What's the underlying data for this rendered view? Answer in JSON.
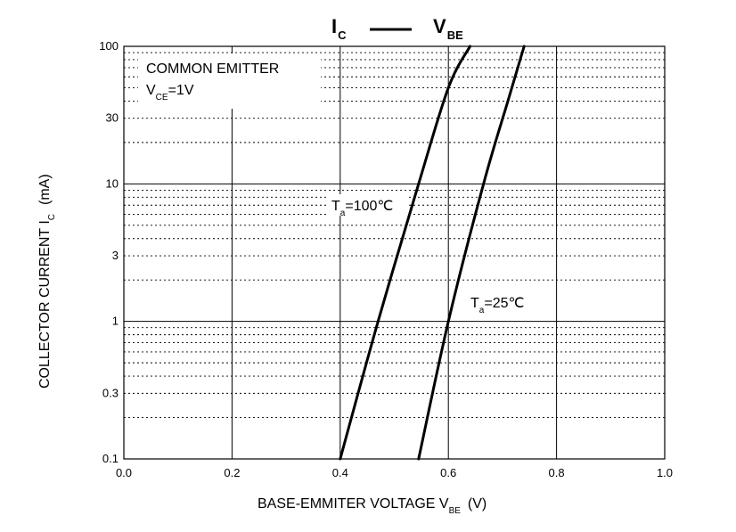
{
  "chart_data": {
    "type": "line",
    "title": {
      "main": "I",
      "main_sub": "C",
      "dash": "——",
      "right": "V",
      "right_sub": "BE"
    },
    "xlabel": {
      "text": "BASE-EMMITER VOLTAGE   V",
      "sub": "BE",
      "unit": "(V)"
    },
    "ylabel": {
      "text": "COLLECTOR CURRENT   I",
      "sub": "C",
      "unit": "(mA)"
    },
    "xlim": [
      0.0,
      1.0
    ],
    "ylim": [
      0.1,
      100
    ],
    "yscale": "log",
    "grid": true,
    "xticks": [
      0.0,
      0.2,
      0.4,
      0.6,
      0.8,
      1.0
    ],
    "xtick_labels": [
      "0.0",
      "0.2",
      "0.4",
      "0.6",
      "0.8",
      "1.0"
    ],
    "yticks": [
      0.1,
      0.3,
      1,
      3,
      10,
      30,
      100
    ],
    "ytick_labels": [
      "0.1",
      "0.3",
      "1",
      "3",
      "10",
      "30",
      "100"
    ],
    "legend_box": {
      "line1": "COMMON EMITTER",
      "line2_main": "V",
      "line2_sub": "CE",
      "line2_rest": "=1V"
    },
    "series": [
      {
        "name": "Ta=100℃",
        "label_main": "T",
        "label_sub": "a",
        "label_rest": "=100℃",
        "points": [
          [
            0.4,
            0.1
          ],
          [
            0.47,
            1
          ],
          [
            0.545,
            10
          ],
          [
            0.6,
            50
          ],
          [
            0.64,
            100
          ]
        ]
      },
      {
        "name": "Ta=25℃",
        "label_main": "T",
        "label_sub": "a",
        "label_rest": "=25℃",
        "points": [
          [
            0.545,
            0.1
          ],
          [
            0.6,
            1
          ],
          [
            0.665,
            10
          ],
          [
            0.71,
            40
          ],
          [
            0.74,
            100
          ]
        ]
      }
    ]
  }
}
